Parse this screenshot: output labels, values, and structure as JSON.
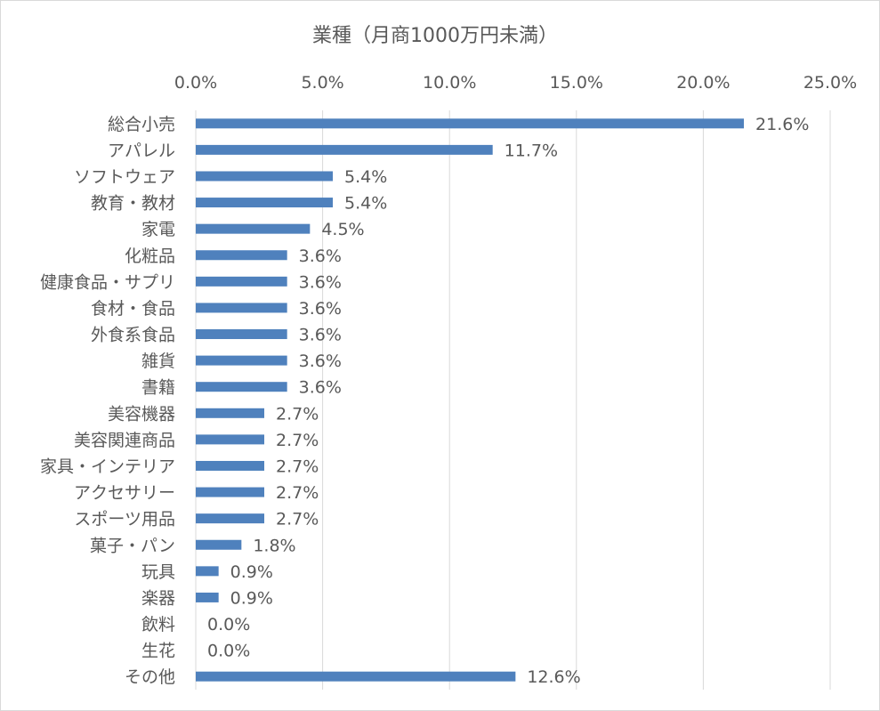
{
  "chart_data": {
    "type": "bar",
    "orientation": "horizontal",
    "title": "業種（月商1000万円未満）",
    "xlabel": "",
    "ylabel": "",
    "xlim": [
      0,
      25
    ],
    "x_ticks": [
      "0.0%",
      "5.0%",
      "10.0%",
      "15.0%",
      "20.0%",
      "25.0%"
    ],
    "x_tick_values": [
      0,
      5,
      10,
      15,
      20,
      25
    ],
    "x_axis_position": "top",
    "grid": true,
    "legend": "none",
    "bar_color": "#4f81bd",
    "categories": [
      "総合小売",
      "アパレル",
      "ソフトウェア",
      "教育・教材",
      "家電",
      "化粧品",
      "健康食品・サプリ",
      "食材・食品",
      "外食系食品",
      "雑貨",
      "書籍",
      "美容機器",
      "美容関連商品",
      "家具・インテリア",
      "アクセサリー",
      "スポーツ用品",
      "菓子・パン",
      "玩具",
      "楽器",
      "飲料",
      "生花",
      "その他"
    ],
    "values": [
      21.6,
      11.7,
      5.4,
      5.4,
      4.5,
      3.6,
      3.6,
      3.6,
      3.6,
      3.6,
      3.6,
      2.7,
      2.7,
      2.7,
      2.7,
      2.7,
      1.8,
      0.9,
      0.9,
      0.0,
      0.0,
      12.6
    ],
    "data_labels": [
      "21.6%",
      "11.7%",
      "5.4%",
      "5.4%",
      "4.5%",
      "3.6%",
      "3.6%",
      "3.6%",
      "3.6%",
      "3.6%",
      "3.6%",
      "2.7%",
      "2.7%",
      "2.7%",
      "2.7%",
      "2.7%",
      "1.8%",
      "0.9%",
      "0.9%",
      "0.0%",
      "0.0%",
      "12.6%"
    ]
  }
}
